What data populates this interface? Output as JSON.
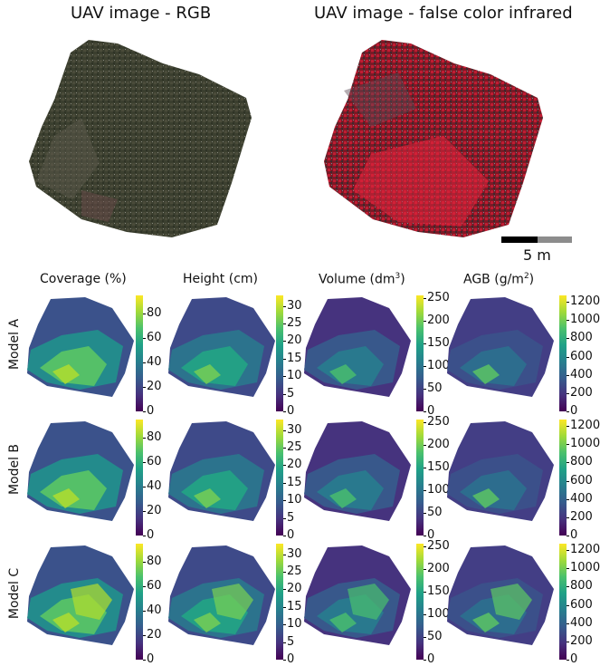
{
  "titles": {
    "rgb": "UAV image - RGB",
    "fci": "UAV image - false color infrared"
  },
  "scale_bar": {
    "label": "5 m"
  },
  "columns": [
    {
      "label": "Coverage (%)",
      "unit_sup": ""
    },
    {
      "label": "Height (cm)",
      "unit_sup": ""
    },
    {
      "label": "Volume (dm",
      "unit_sup": "3",
      "label_tail": ")"
    },
    {
      "label": "AGB (g/m",
      "unit_sup": "2",
      "label_tail": ")"
    }
  ],
  "rows": [
    "Model A",
    "Model B",
    "Model C"
  ],
  "colorbar_ticks": [
    [
      "0",
      "20",
      "40",
      "60",
      "80"
    ],
    [
      "0",
      "5",
      "10",
      "15",
      "20",
      "25",
      "30"
    ],
    [
      "0",
      "50",
      "100",
      "150",
      "200",
      "250"
    ],
    [
      "0",
      "200",
      "400",
      "600",
      "800",
      "1000",
      "1200"
    ]
  ],
  "colors": {
    "rgb_base": "#3d4030",
    "fci_base": "#9b1d2a",
    "viridis_low": "#440154",
    "viridis_high": "#fde725"
  }
}
